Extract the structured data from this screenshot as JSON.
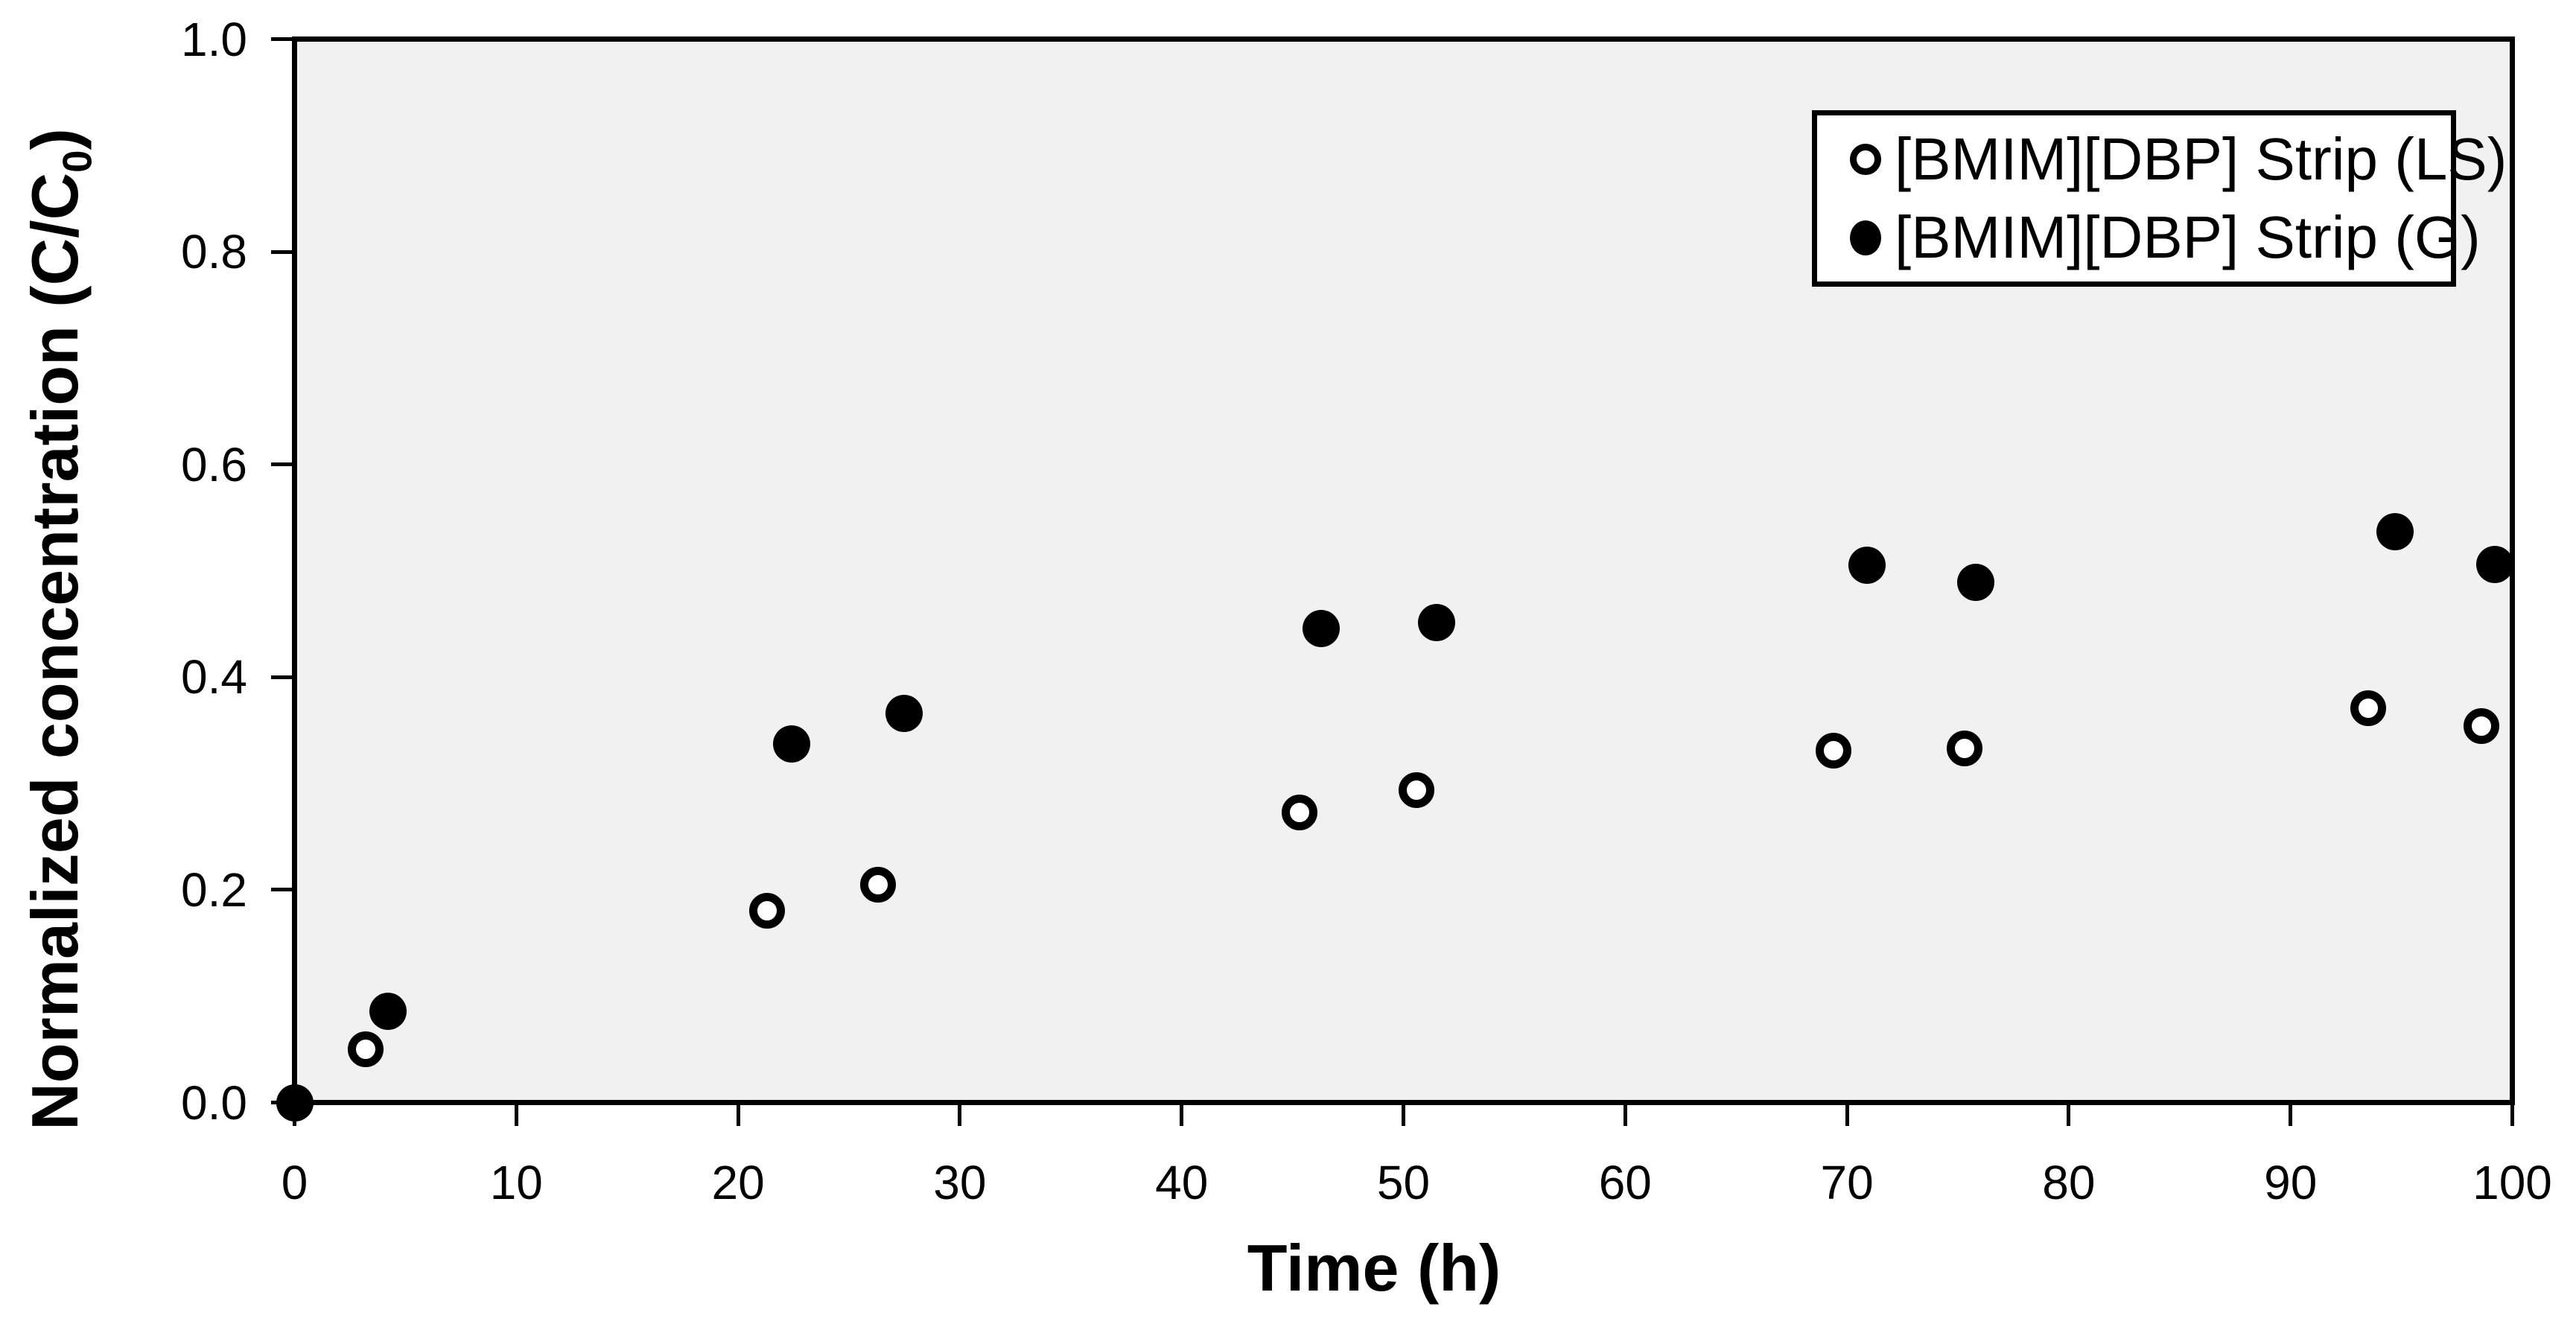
{
  "figure": {
    "background_color": "#ffffff",
    "plot_background_color": "#f1f1f1",
    "axis_color": "#000000",
    "legend_border_color": "#000000",
    "legend_background_color": "#ffffff"
  },
  "chart_data": {
    "type": "scatter",
    "title": "",
    "xlabel": "Time (h)",
    "ylabel": "Normalized concentration (C/C0)",
    "ylabel_parts": {
      "main": "Normalized concentration (C/C",
      "sub": "0",
      "end": ")"
    },
    "xlim": [
      0,
      100
    ],
    "ylim": [
      0.0,
      1.0
    ],
    "x_ticks": [
      0,
      10,
      20,
      30,
      40,
      50,
      60,
      70,
      80,
      90,
      100
    ],
    "y_ticks": [
      "0.0",
      "0.2",
      "0.4",
      "0.6",
      "0.8",
      "1.0"
    ],
    "grid": false,
    "legend_position": "top-right",
    "series": [
      {
        "name": "[BMIM][DBP] Strip (LS)",
        "marker": "open-circle",
        "stroke": "#000000",
        "fill": "#ffffff",
        "points": [
          [
            0,
            0.0
          ],
          [
            3.2,
            0.05
          ],
          [
            21.3,
            0.18
          ],
          [
            26.3,
            0.205
          ],
          [
            45.3,
            0.273
          ],
          [
            50.6,
            0.294
          ],
          [
            69.4,
            0.331
          ],
          [
            75.3,
            0.333
          ],
          [
            93.5,
            0.371
          ],
          [
            98.6,
            0.354
          ]
        ]
      },
      {
        "name": "[BMIM][DBP] Strip (G)",
        "marker": "filled-circle",
        "stroke": "#000000",
        "fill": "#000000",
        "points": [
          [
            0,
            0.0
          ],
          [
            4.2,
            0.086
          ],
          [
            22.4,
            0.337
          ],
          [
            27.5,
            0.366
          ],
          [
            46.3,
            0.446
          ],
          [
            51.5,
            0.451
          ],
          [
            70.9,
            0.505
          ],
          [
            75.8,
            0.489
          ],
          [
            94.7,
            0.537
          ],
          [
            99.2,
            0.506
          ]
        ]
      }
    ]
  }
}
